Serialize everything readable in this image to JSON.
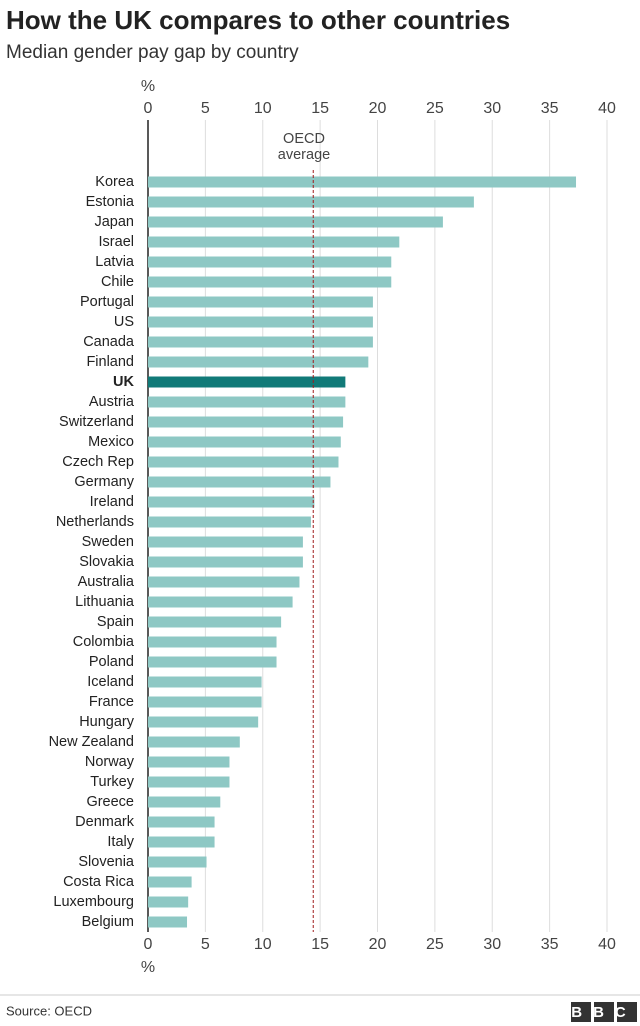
{
  "chart_data": {
    "type": "bar",
    "orientation": "horizontal",
    "title": "How the UK compares to other countries",
    "subtitle": "Median gender pay gap by country",
    "xlabel": "%",
    "categories": [
      "Korea",
      "Estonia",
      "Japan",
      "Israel",
      "Latvia",
      "Chile",
      "Portugal",
      "US",
      "Canada",
      "Finland",
      "UK",
      "Austria",
      "Switzerland",
      "Mexico",
      "Czech Rep",
      "Germany",
      "Ireland",
      "Netherlands",
      "Sweden",
      "Slovakia",
      "Australia",
      "Lithuania",
      "Spain",
      "Colombia",
      "Poland",
      "Iceland",
      "France",
      "Hungary",
      "New Zealand",
      "Norway",
      "Turkey",
      "Greece",
      "Denmark",
      "Italy",
      "Slovenia",
      "Costa Rica",
      "Luxembourg",
      "Belgium"
    ],
    "values": [
      37.3,
      28.4,
      25.7,
      21.9,
      21.2,
      21.2,
      19.6,
      19.6,
      19.6,
      19.2,
      17.2,
      17.2,
      17.0,
      16.8,
      16.6,
      15.9,
      14.5,
      14.2,
      13.5,
      13.5,
      13.2,
      12.6,
      11.6,
      11.2,
      11.2,
      9.9,
      9.9,
      9.6,
      8.0,
      7.1,
      7.1,
      6.3,
      5.8,
      5.8,
      5.1,
      3.8,
      3.5,
      3.4
    ],
    "color": "#8ec8c4",
    "highlight": {
      "category": "UK",
      "color": "#117a78"
    },
    "xlim": [
      0,
      40
    ],
    "xticks": [
      0,
      5,
      10,
      15,
      20,
      25,
      30,
      35,
      40
    ],
    "grid": true,
    "annotation": {
      "text": [
        "OECD",
        "average"
      ],
      "value": 14.4,
      "color": "#a01c1c"
    },
    "source": "Source: OECD",
    "logo": "BBC"
  }
}
